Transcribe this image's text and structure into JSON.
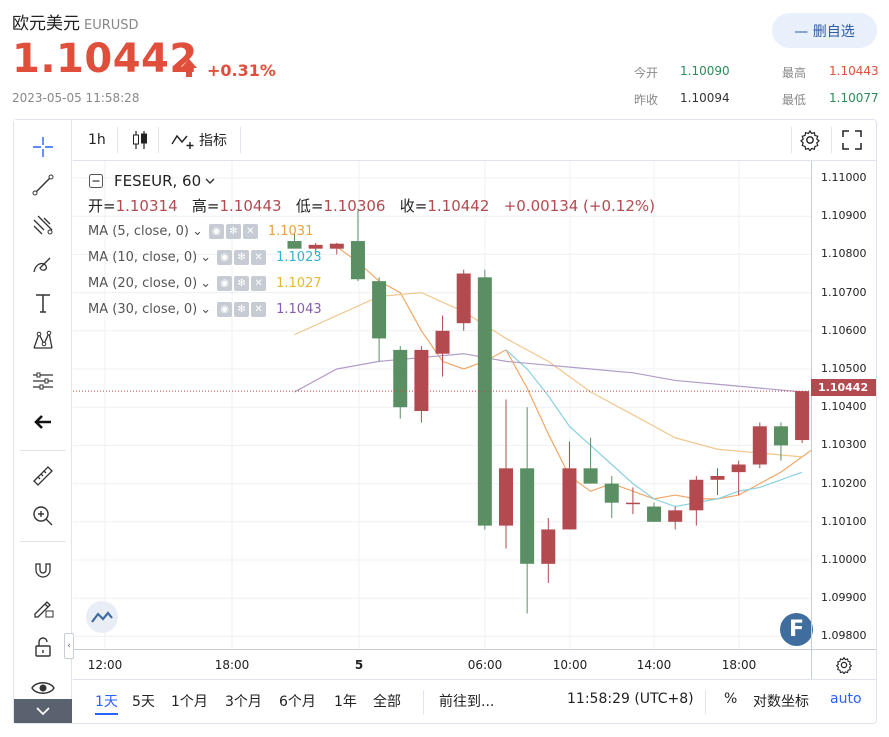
{
  "header": {
    "name": "欧元美元",
    "code": "EURUSD",
    "price": "1.10442",
    "change": "+0.31%",
    "timestamp": "2023-05-05 11:58:28",
    "fav_button": "— 删自选",
    "quotes": {
      "open_label": "今开",
      "open": "1.10090",
      "high_label": "最高",
      "high": "1.10443",
      "prevclose_label": "昨收",
      "prevclose": "1.10094",
      "low_label": "最低",
      "low": "1.10077"
    }
  },
  "toolbar": {
    "interval": "1h",
    "indicators_label": "指标"
  },
  "legend": {
    "symbol": "FESEUR, 60",
    "open_label": "开=",
    "open": "1.10314",
    "high_label": "高=",
    "high": "1.10443",
    "low_label": "低=",
    "low": "1.10306",
    "close_label": "收=",
    "close": "1.10442",
    "change": "+0.00134 (+0.12%)"
  },
  "ma": [
    {
      "label": "MA (5, close, 0)",
      "value": "1.1031",
      "color": "#e8a040"
    },
    {
      "label": "MA (10, close, 0)",
      "value": "1.1023",
      "color": "#30b5d0"
    },
    {
      "label": "MA (20, close, 0)",
      "value": "1.1027",
      "color": "#e8b830"
    },
    {
      "label": "MA (30, close, 0)",
      "value": "1.1043",
      "color": "#8a5bb0"
    }
  ],
  "chart_data": {
    "type": "candlestick",
    "y_ticks": [
      "1.11000",
      "1.10900",
      "1.10800",
      "1.10700",
      "1.10600",
      "1.10500",
      "1.10400",
      "1.10300",
      "1.10200",
      "1.10100",
      "1.10000",
      "1.09900",
      "1.09800"
    ],
    "ylim": [
      1.0975,
      1.1102
    ],
    "current_price_label": "1.10442",
    "x_ticks": [
      "12:00",
      "18:00",
      "5",
      "06:00",
      "10:00",
      "14:00",
      "18:00"
    ],
    "colors": {
      "up": "#b34a4f",
      "down": "#5a8f63"
    },
    "candles": [
      {
        "o": 1.10835,
        "h": 1.10855,
        "l": 1.10825,
        "c": 1.10815
      },
      {
        "o": 1.10815,
        "h": 1.1083,
        "l": 1.108,
        "c": 1.10825
      },
      {
        "o": 1.10815,
        "h": 1.1083,
        "l": 1.108,
        "c": 1.10828
      },
      {
        "o": 1.10835,
        "h": 1.1092,
        "l": 1.1073,
        "c": 1.10735
      },
      {
        "o": 1.1073,
        "h": 1.1074,
        "l": 1.1052,
        "c": 1.1058
      },
      {
        "o": 1.1055,
        "h": 1.1056,
        "l": 1.1037,
        "c": 1.104
      },
      {
        "o": 1.1039,
        "h": 1.1056,
        "l": 1.1036,
        "c": 1.1055
      },
      {
        "o": 1.1054,
        "h": 1.1064,
        "l": 1.1048,
        "c": 1.106
      },
      {
        "o": 1.1062,
        "h": 1.1076,
        "l": 1.106,
        "c": 1.1075
      },
      {
        "o": 1.1074,
        "h": 1.1076,
        "l": 1.1008,
        "c": 1.1009
      },
      {
        "o": 1.1009,
        "h": 1.1042,
        "l": 1.1003,
        "c": 1.1024
      },
      {
        "o": 1.1024,
        "h": 1.104,
        "l": 1.0986,
        "c": 1.0999
      },
      {
        "o": 1.0999,
        "h": 1.1011,
        "l": 1.0994,
        "c": 1.1008
      },
      {
        "o": 1.1008,
        "h": 1.1031,
        "l": 1.1008,
        "c": 1.1024
      },
      {
        "o": 1.1024,
        "h": 1.1032,
        "l": 1.102,
        "c": 1.102
      },
      {
        "o": 1.102,
        "h": 1.1022,
        "l": 1.1011,
        "c": 1.1015
      },
      {
        "o": 1.1015,
        "h": 1.1019,
        "l": 1.1012,
        "c": 1.1015
      },
      {
        "o": 1.1014,
        "h": 1.1015,
        "l": 1.101,
        "c": 1.101
      },
      {
        "o": 1.101,
        "h": 1.1014,
        "l": 1.1008,
        "c": 1.1013
      },
      {
        "o": 1.1013,
        "h": 1.1022,
        "l": 1.1009,
        "c": 1.1021
      },
      {
        "o": 1.1021,
        "h": 1.1024,
        "l": 1.1017,
        "c": 1.1022
      },
      {
        "o": 1.1023,
        "h": 1.1026,
        "l": 1.1017,
        "c": 1.1025
      },
      {
        "o": 1.1025,
        "h": 1.1036,
        "l": 1.1024,
        "c": 1.1035
      },
      {
        "o": 1.1035,
        "h": 1.1036,
        "l": 1.1026,
        "c": 1.103
      },
      {
        "o": 1.10314,
        "h": 1.10443,
        "l": 1.10306,
        "c": 1.10442
      }
    ],
    "ma_lines": [
      {
        "name": "MA5",
        "color": "#f0a868",
        "points": [
          [
            12,
            1.1082
          ],
          [
            13,
            1.1078
          ],
          [
            14,
            1.1073
          ],
          [
            15,
            1.107
          ],
          [
            16,
            1.106
          ],
          [
            17,
            1.1052
          ],
          [
            18,
            1.105
          ],
          [
            19,
            1.1052
          ],
          [
            20,
            1.1055
          ],
          [
            21,
            1.1045
          ],
          [
            22,
            1.1033
          ],
          [
            23,
            1.1022
          ],
          [
            24,
            1.1018
          ],
          [
            25,
            1.102
          ],
          [
            26,
            1.1018
          ],
          [
            27,
            1.1016
          ],
          [
            28,
            1.1017
          ],
          [
            29,
            1.1016
          ],
          [
            30,
            1.1016
          ],
          [
            31,
            1.1017
          ],
          [
            32,
            1.102
          ],
          [
            33,
            1.1023
          ],
          [
            34,
            1.1027
          ],
          [
            35,
            1.1031
          ]
        ]
      },
      {
        "name": "MA10",
        "color": "#8ad2e0",
        "points": [
          [
            20,
            1.1055
          ],
          [
            21,
            1.105
          ],
          [
            22,
            1.1043
          ],
          [
            23,
            1.1035
          ],
          [
            24,
            1.103
          ],
          [
            25,
            1.1025
          ],
          [
            26,
            1.102
          ],
          [
            27,
            1.1016
          ],
          [
            28,
            1.1014
          ],
          [
            29,
            1.1015
          ],
          [
            30,
            1.1016
          ],
          [
            31,
            1.1018
          ],
          [
            32,
            1.1019
          ],
          [
            33,
            1.1021
          ],
          [
            34,
            1.1023
          ]
        ]
      },
      {
        "name": "MA20",
        "color": "#f0c890",
        "points": [
          [
            10,
            1.1059
          ],
          [
            12,
            1.1064
          ],
          [
            14,
            1.1069
          ],
          [
            16,
            1.107
          ],
          [
            18,
            1.1065
          ],
          [
            20,
            1.1058
          ],
          [
            22,
            1.1052
          ],
          [
            24,
            1.1044
          ],
          [
            26,
            1.1038
          ],
          [
            28,
            1.1032
          ],
          [
            30,
            1.1029
          ],
          [
            32,
            1.1028
          ],
          [
            34,
            1.1027
          ]
        ]
      },
      {
        "name": "MA30",
        "color": "#b19cc8",
        "points": [
          [
            10,
            1.1044
          ],
          [
            12,
            1.105
          ],
          [
            14,
            1.1052
          ],
          [
            16,
            1.1053
          ],
          [
            18,
            1.1054
          ],
          [
            20,
            1.1052
          ],
          [
            22,
            1.1051
          ],
          [
            24,
            1.105
          ],
          [
            26,
            1.1049
          ],
          [
            28,
            1.1047
          ],
          [
            30,
            1.1046
          ],
          [
            32,
            1.1045
          ],
          [
            34,
            1.1044
          ]
        ]
      }
    ]
  },
  "bottombar": {
    "ranges": [
      "1天",
      "5天",
      "1个月",
      "3个月",
      "6个月",
      "1年",
      "全部"
    ],
    "goto": "前往到...",
    "clock": "11:58:29 (UTC+8)",
    "percent": "%",
    "log": "对数坐标",
    "auto": "auto"
  }
}
